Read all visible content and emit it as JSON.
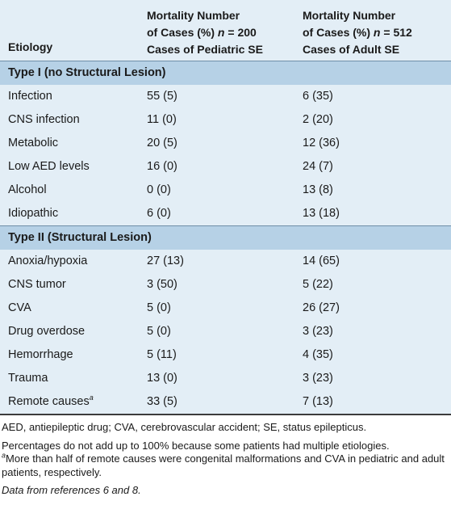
{
  "table": {
    "headers": {
      "etiology": "Etiology",
      "pediatric": {
        "line1": "Mortality Number",
        "line2_pre": "of Cases (%) ",
        "line2_n": "n",
        "line2_post": " = 200",
        "line3": "Cases of Pediatric SE"
      },
      "adult": {
        "line1": "Mortality Number",
        "line2_pre": "of Cases (%) ",
        "line2_n": "n",
        "line2_post": " = 512",
        "line3": "Cases of Adult SE"
      }
    },
    "sections": [
      {
        "title": "Type I (no Structural Lesion)",
        "rows": [
          {
            "etiology": "Infection",
            "pediatric": "55 (5)",
            "adult": "6 (35)"
          },
          {
            "etiology": "CNS infection",
            "pediatric": "11 (0)",
            "adult": "2 (20)"
          },
          {
            "etiology": "Metabolic",
            "pediatric": "20 (5)",
            "adult": "12 (36)"
          },
          {
            "etiology": "Low AED levels",
            "pediatric": "16 (0)",
            "adult": "24 (7)"
          },
          {
            "etiology": "Alcohol",
            "pediatric": "0 (0)",
            "adult": "13 (8)"
          },
          {
            "etiology": "Idiopathic",
            "pediatric": "6 (0)",
            "adult": "13 (18)"
          }
        ]
      },
      {
        "title": "Type II (Structural Lesion)",
        "rows": [
          {
            "etiology": "Anoxia/hypoxia",
            "pediatric": "27 (13)",
            "adult": "14 (65)"
          },
          {
            "etiology": "CNS tumor",
            "pediatric": "3 (50)",
            "adult": "5 (22)"
          },
          {
            "etiology": "CVA",
            "pediatric": "5 (0)",
            "adult": "26 (27)"
          },
          {
            "etiology": "Drug overdose",
            "pediatric": "5 (0)",
            "adult": "3 (23)"
          },
          {
            "etiology": "Hemorrhage",
            "pediatric": "5 (11)",
            "adult": "4 (35)"
          },
          {
            "etiology": "Trauma",
            "pediatric": "13 (0)",
            "adult": "3 (23)"
          },
          {
            "etiology": "Remote causes",
            "etiology_sup": "a",
            "pediatric": "33 (5)",
            "adult": "7 (13)"
          }
        ]
      }
    ]
  },
  "footnotes": {
    "abbreviations": "AED, antiepileptic drug; CVA, cerebrovascular accident; SE, status epilepticus.",
    "percentages": "Percentages do not add up to 100% because some patients had multiple etiologies.",
    "remote_marker": "a",
    "remote_note": "More than half of remote causes were congenital malformations and CVA in pediatric and adult patients, respectively.",
    "source": "Data from references 6 and 8."
  }
}
